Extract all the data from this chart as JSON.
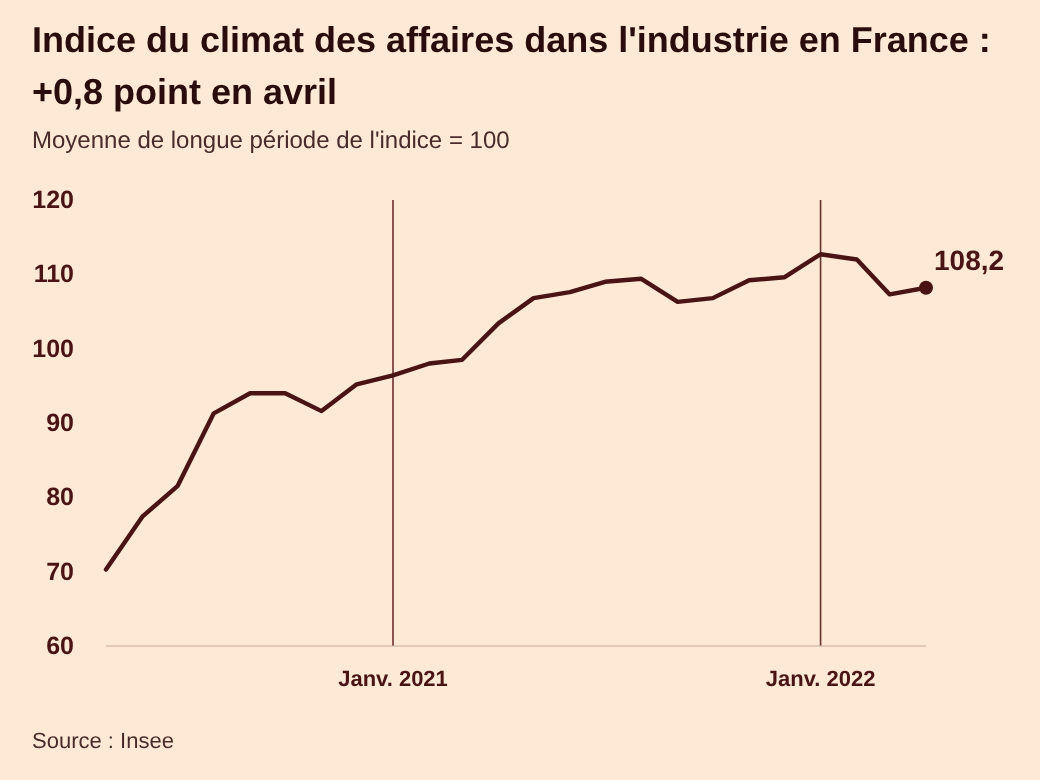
{
  "chart_data": {
    "type": "line",
    "title": "Indice du climat des affaires dans l'industrie en France : +0,8 point en avril",
    "subtitle": "Moyenne de longue période de l'indice = 100",
    "annotations": [
      "Source : Insee"
    ],
    "x": [
      "2020-05",
      "2020-06",
      "2020-07",
      "2020-08",
      "2020-09",
      "2020-10",
      "2020-11",
      "2020-12",
      "2021-01",
      "2021-02",
      "2021-03",
      "2021-04",
      "2021-05",
      "2021-06",
      "2021-07",
      "2021-08",
      "2021-09",
      "2021-10",
      "2021-11",
      "2021-12",
      "2022-01",
      "2022-02",
      "2022-03",
      "2022-04"
    ],
    "series": [
      {
        "color": "#4a1414",
        "values": [
          70.3,
          77.4,
          81.5,
          91.3,
          94,
          94,
          91.6,
          95.2,
          96.4,
          98,
          98.5,
          103.4,
          106.8,
          107.6,
          109,
          109.4,
          106.3,
          106.8,
          109.2,
          109.6,
          112.7,
          112,
          107.3,
          108.2
        ],
        "value_labels": [
          null,
          null,
          null,
          null,
          null,
          null,
          null,
          null,
          null,
          null,
          null,
          null,
          null,
          null,
          null,
          null,
          null,
          null,
          null,
          null,
          null,
          null,
          null,
          "108,2"
        ]
      }
    ],
    "xlim": [
      "2020-05",
      "2022-04"
    ],
    "xticks": [
      {
        "value": "2021-01",
        "label": "Janv. 2021"
      },
      {
        "value": "2022-01",
        "label": "Janv. 2022"
      }
    ],
    "ylim": [
      60,
      120
    ],
    "yticks": [
      60,
      70,
      80,
      90,
      100,
      110,
      120
    ],
    "grid": "x",
    "marker": "none",
    "line_style": "solid"
  }
}
